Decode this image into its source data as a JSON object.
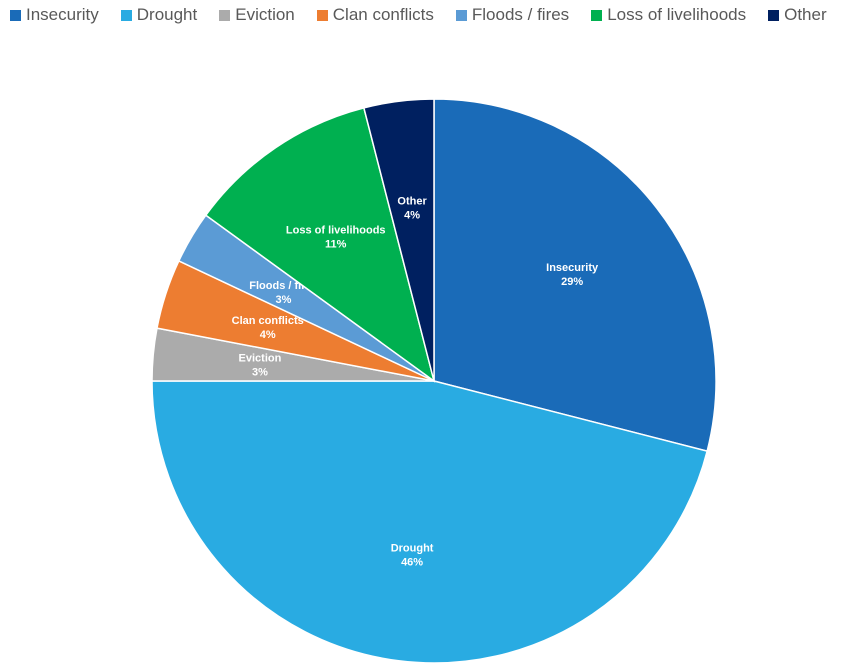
{
  "chart_data": {
    "type": "pie",
    "categories": [
      "Insecurity",
      "Drought",
      "Eviction",
      "Clan conflicts",
      "Floods / fires",
      "Loss of livelihoods",
      "Other"
    ],
    "values": [
      29,
      46,
      3,
      4,
      3,
      11,
      4
    ],
    "value_labels": [
      "29%",
      "46%",
      "3%",
      "4%",
      "3%",
      "11%",
      "4%"
    ],
    "colors": [
      "#1A6BB8",
      "#29ABE2",
      "#ABABAB",
      "#ED7D31",
      "#5B9BD5",
      "#00B050",
      "#002060"
    ],
    "legend_position": "top",
    "data_labels": "inside"
  }
}
